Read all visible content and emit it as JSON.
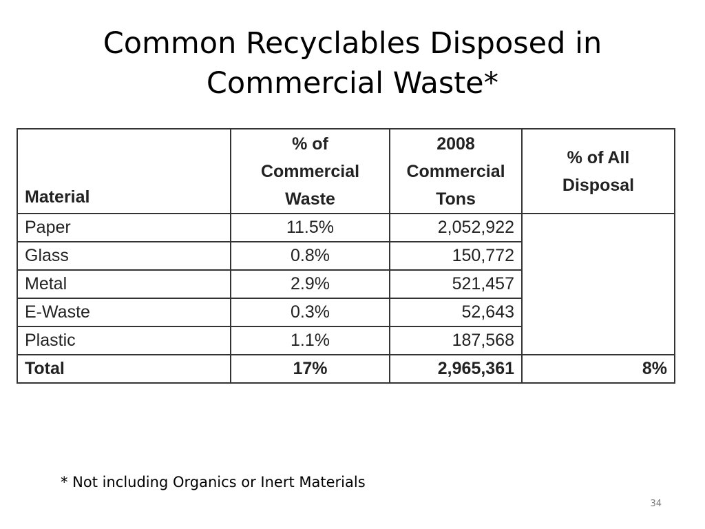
{
  "slide": {
    "title_line1": "Common Recyclables Disposed in",
    "title_line2": "Commercial Waste*",
    "footnote": "* Not including Organics or Inert Materials",
    "page_number": "34"
  },
  "table": {
    "headers": {
      "material": "Material",
      "pct_commercial": [
        "% of",
        "Commercial",
        "Waste"
      ],
      "tons": [
        "2008",
        "Commercial",
        "Tons"
      ],
      "pct_all": [
        "% of All",
        "Disposal"
      ]
    },
    "rows": [
      {
        "material": "Paper",
        "pct": "11.5%",
        "tons": "2,052,922"
      },
      {
        "material": "Glass",
        "pct": "0.8%",
        "tons": "150,772"
      },
      {
        "material": "Metal",
        "pct": "2.9%",
        "tons": "521,457"
      },
      {
        "material": "E-Waste",
        "pct": "0.3%",
        "tons": "52,643"
      },
      {
        "material": "Plastic",
        "pct": "1.1%",
        "tons": "187,568"
      }
    ],
    "total": {
      "material": "Total",
      "pct": "17%",
      "tons": "2,965,361",
      "pct_all": "8%"
    }
  }
}
